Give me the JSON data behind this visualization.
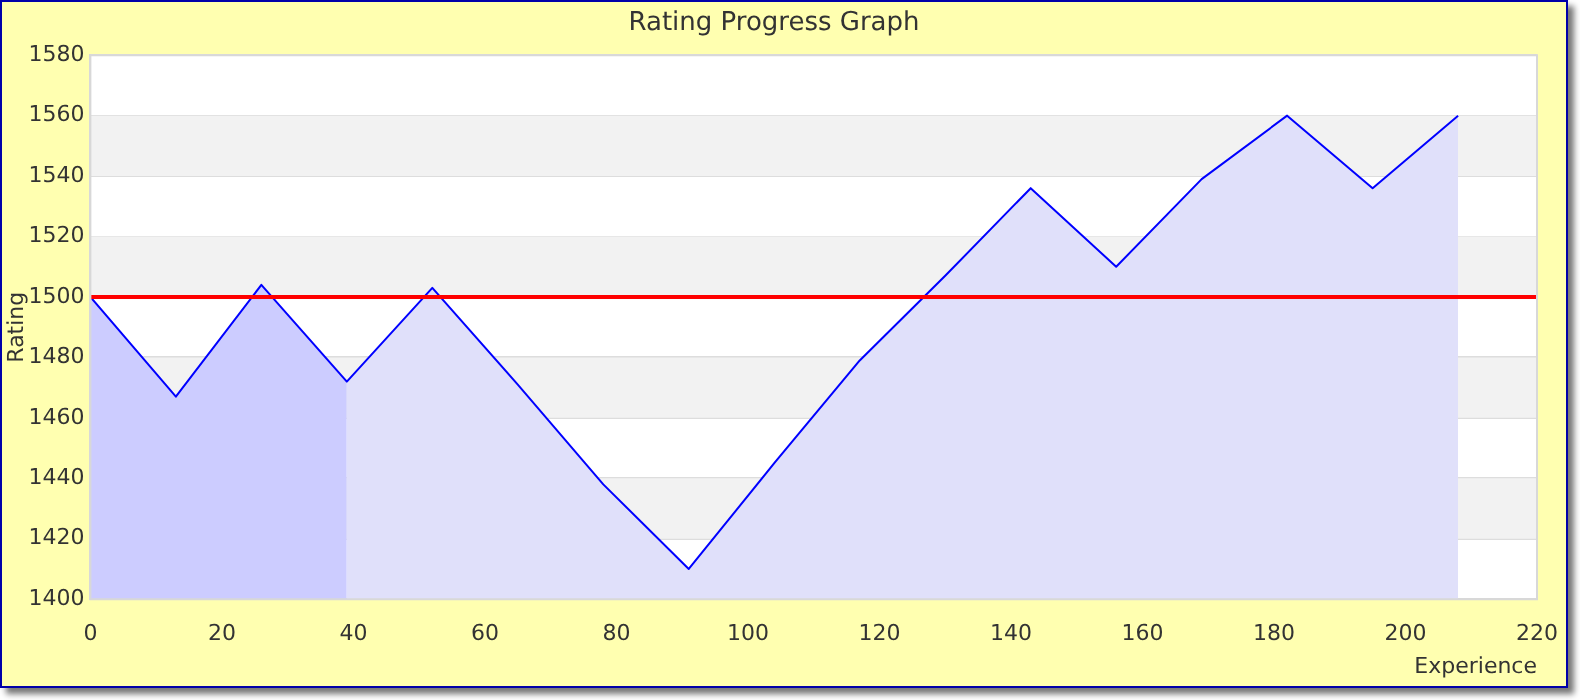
{
  "chart_data": {
    "type": "area",
    "title": "Rating Progress Graph",
    "xlabel": "Experience",
    "ylabel": "Rating",
    "series": [
      {
        "color": "#ccccff",
        "x": [
          0,
          13,
          26,
          39
        ],
        "values": [
          1500,
          1467,
          1504,
          1472
        ]
      },
      {
        "color": "#e0e0fa",
        "x": [
          39,
          52,
          65,
          78,
          91,
          104,
          117,
          130,
          143,
          156,
          169,
          182,
          195,
          208
        ],
        "values": [
          1472,
          1503,
          1471,
          1438,
          1410,
          1445,
          1479,
          1507,
          1536,
          1510,
          1539,
          1560,
          1536,
          1560
        ]
      },
      {
        "type": "line",
        "color": "#0000ff",
        "x": [
          0,
          13,
          26,
          39,
          52,
          65,
          78,
          91,
          104,
          117,
          130,
          143,
          156,
          169,
          182,
          195,
          208
        ],
        "values": [
          1500,
          1467,
          1504,
          1472,
          1503,
          1471,
          1438,
          1410,
          1445,
          1479,
          1507,
          1536,
          1510,
          1539,
          1560,
          1536,
          1560
        ]
      }
    ],
    "xlim": [
      0,
      220
    ],
    "xticks": [
      0,
      20,
      40,
      60,
      80,
      100,
      120,
      140,
      160,
      180,
      200,
      220
    ],
    "ylim": [
      1400,
      1580
    ],
    "yticks": [
      1400,
      1420,
      1440,
      1460,
      1480,
      1500,
      1520,
      1540,
      1560,
      1580
    ],
    "ref_lines": [
      {
        "axis": "y",
        "value": 1500,
        "color": "#ff0000"
      }
    ],
    "grid": "y",
    "marker": "none",
    "line_style": "solid",
    "legend": false
  }
}
